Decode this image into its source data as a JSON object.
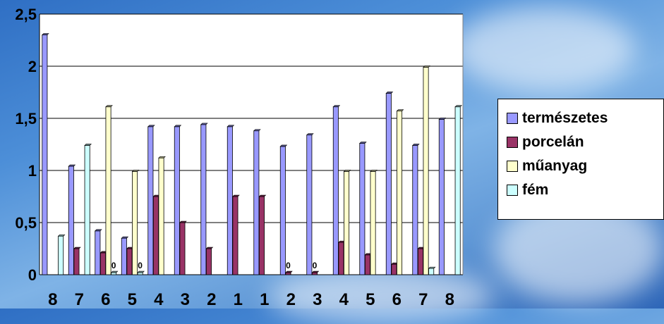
{
  "chart_data": {
    "type": "bar",
    "categories": [
      "8",
      "7",
      "6",
      "5",
      "4",
      "3",
      "2",
      "1",
      "1",
      "2",
      "3",
      "4",
      "5",
      "6",
      "7",
      "8"
    ],
    "series": [
      {
        "name": "természetes",
        "color": "#9999ff",
        "values": [
          2.3,
          1.04,
          0.42,
          0.35,
          1.42,
          1.42,
          1.44,
          1.42,
          1.38,
          1.23,
          1.34,
          1.61,
          1.26,
          1.74,
          1.24,
          1.49
        ]
      },
      {
        "name": "porcelán",
        "color": "#993366",
        "values": [
          0,
          0.25,
          0.21,
          0.25,
          0.75,
          0.5,
          0.25,
          0.75,
          0.75,
          0.02,
          0.02,
          0.31,
          0.19,
          0.1,
          0.25,
          0
        ]
      },
      {
        "name": "műanyag",
        "color": "#ffffcc",
        "values": [
          0,
          0,
          1.61,
          0.99,
          1.12,
          0,
          0,
          0,
          0,
          0,
          0,
          0.99,
          0.99,
          1.57,
          1.99,
          0
        ]
      },
      {
        "name": "fém",
        "color": "#ccffff",
        "values": [
          0.37,
          1.24,
          0.02,
          0.02,
          0,
          0,
          0,
          0,
          0,
          0,
          0,
          0,
          0,
          0,
          0.06,
          1.61
        ]
      }
    ],
    "yticks": [
      "0",
      "0,5",
      "1",
      "1,5",
      "2",
      "2,5"
    ],
    "ylim": [
      0,
      2.5
    ],
    "grid": true,
    "legend": "right",
    "annotations": [
      {
        "category_index": 2,
        "series": "fém",
        "text": "0"
      },
      {
        "category_index": 3,
        "series": "fém",
        "text": "0"
      },
      {
        "category_index": 9,
        "series": "porcelán",
        "text": "0"
      },
      {
        "category_index": 10,
        "series": "porcelán",
        "text": "0"
      }
    ]
  }
}
